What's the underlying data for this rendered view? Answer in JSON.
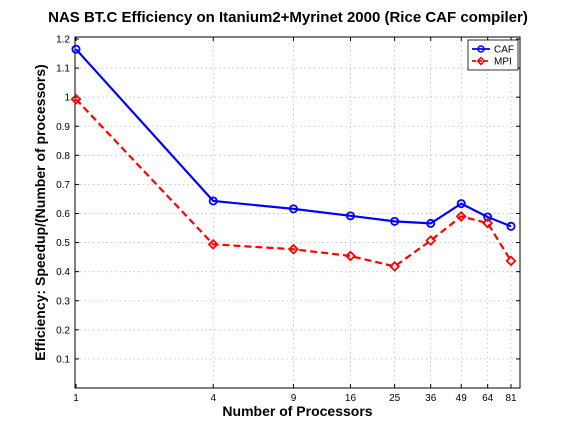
{
  "chart_data": {
    "type": "line",
    "title": "NAS BT.C Efficiency on Itanium2+Myrinet 2000 (Rice CAF compiler)",
    "xlabel": "Number of Processors",
    "ylabel": "Efficiency: Speedup/(Number of processors)",
    "x_scale": "log",
    "x": [
      1,
      4,
      9,
      16,
      25,
      36,
      49,
      64,
      81
    ],
    "xticks": [
      "1",
      "4",
      "9",
      "16",
      "25",
      "36",
      "49",
      "64",
      "81"
    ],
    "xlim": [
      1,
      81
    ],
    "ylim": [
      0,
      1.2
    ],
    "yticks": [
      "0.1",
      "0.2",
      "0.3",
      "0.4",
      "0.5",
      "0.6",
      "0.7",
      "0.8",
      "0.9",
      "1",
      "1.1",
      "1.2"
    ],
    "grid": true,
    "legend_position": "top-right",
    "series": [
      {
        "name": "CAF",
        "color": "#0000ff",
        "line_style": "solid",
        "marker": "circle",
        "values": [
          1.165,
          0.643,
          0.616,
          0.592,
          0.573,
          0.566,
          0.634,
          0.588,
          0.556
        ]
      },
      {
        "name": "MPI",
        "color": "#ff0000",
        "line_style": "dashed",
        "marker": "diamond",
        "values": [
          0.993,
          0.494,
          0.477,
          0.454,
          0.418,
          0.507,
          0.59,
          0.567,
          0.437
        ]
      }
    ]
  }
}
